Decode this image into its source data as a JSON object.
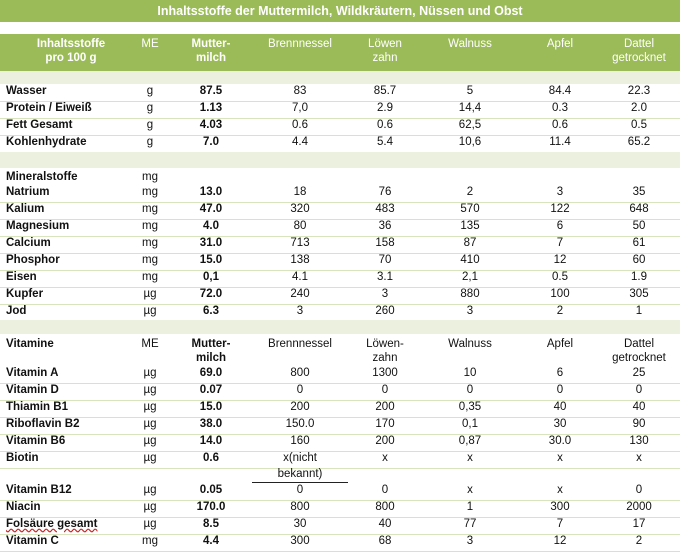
{
  "title": "Inhaltsstoffe der Muttermilch, Wildkräutern, Nüssen und Obst",
  "header": {
    "col0": [
      "Inhaltsstoffe",
      "pro 100 g"
    ],
    "col1": "ME",
    "col2": [
      "Mutter-",
      "milch"
    ],
    "col3": "Brennnessel",
    "col4": [
      "Löwen",
      "zahn"
    ],
    "col5": "Walnuss",
    "col6": "Apfel",
    "col7": [
      "Dattel",
      "getrocknet"
    ]
  },
  "section1": {
    "rows": [
      [
        "Wasser",
        "g",
        "87.5",
        "83",
        "85.7",
        "5",
        "84.4",
        "22.3"
      ],
      [
        "Protein / Eiweiß",
        "g",
        "1.13",
        "7,0",
        "2.9",
        "14,4",
        "0.3",
        "2.0"
      ],
      [
        "Fett Gesamt",
        "g",
        "4.03",
        "0.6",
        "0.6",
        "62,5",
        "0.6",
        "0.5"
      ],
      [
        "Kohlenhydrate",
        "g",
        "7.0",
        "4.4",
        "5.4",
        "10,6",
        "11.4",
        "65.2"
      ]
    ]
  },
  "section2": {
    "heading": [
      "Mineralstoffe",
      "mg"
    ],
    "rows": [
      [
        "Natrium",
        "mg",
        "13.0",
        "18",
        "76",
        "2",
        "3",
        "35"
      ],
      [
        "Kalium",
        "mg",
        "47.0",
        "320",
        "483",
        "570",
        "122",
        "648"
      ],
      [
        "Magnesium",
        "mg",
        "4.0",
        "80",
        "36",
        "135",
        "6",
        "50"
      ],
      [
        "Calcium",
        "mg",
        "31.0",
        "713",
        "158",
        "87",
        "7",
        "61"
      ],
      [
        "Phosphor",
        "mg",
        "15.0",
        "138",
        "70",
        "410",
        "12",
        "60"
      ],
      [
        "Eisen",
        "mg",
        "0,1",
        "4.1",
        "3.1",
        "2,1",
        "0.5",
        "1.9"
      ],
      [
        "Kupfer",
        "µg",
        "72.0",
        "240",
        "3",
        "880",
        "100",
        "305"
      ],
      [
        "Jod",
        "µg",
        "6.3",
        "3",
        "260",
        "3",
        "2",
        "1"
      ]
    ]
  },
  "section3": {
    "header": {
      "col0": "Vitamine",
      "col1": "ME",
      "col2": [
        "Mutter-",
        "milch"
      ],
      "col3": "Brennnessel",
      "col4": [
        "Löwen-",
        "zahn"
      ],
      "col5": "Walnuss",
      "col6": "Apfel",
      "col7": [
        "Dattel",
        "getrocknet"
      ]
    },
    "rows": [
      [
        "Vitamin A",
        "µg",
        "69.0",
        "800",
        "1300",
        "10",
        "6",
        "25"
      ],
      [
        "Vitamin D",
        "µg",
        "0.07",
        "0",
        "0",
        "0",
        "0",
        "0"
      ],
      [
        "Thiamin B1",
        "µg",
        "15.0",
        "200",
        "200",
        "0,35",
        "40",
        "40"
      ],
      [
        "Riboflavin B2",
        "µg",
        "38.0",
        "150.0",
        "170",
        "0,1",
        "30",
        "90"
      ],
      [
        "Vitamin B6",
        "µg",
        "14.0",
        "160",
        "200",
        "0,87",
        "30.0",
        "130"
      ],
      [
        "Biotin",
        "µg",
        "0.6",
        "x(nicht",
        "x",
        "x",
        "x",
        "x"
      ],
      [
        "Vitamin B12",
        "µg",
        "0.05",
        "0",
        "0",
        "x",
        "x",
        "0"
      ],
      [
        "Niacin",
        "µg",
        "170.0",
        "800",
        "800",
        "1",
        "300",
        "2000"
      ],
      [
        "Folsäure gesamt",
        "µg",
        "8.5",
        "30",
        "40",
        "77",
        "7",
        "17"
      ],
      [
        "Vitamin C",
        "mg",
        "4.4",
        "300",
        "68",
        "3",
        "12",
        "2"
      ]
    ],
    "biotin_note": "bekannt)"
  },
  "colors": {
    "header_green": "#9bbb59",
    "gap_green": "#ebf1de",
    "separator": "#d8e4bc"
  }
}
